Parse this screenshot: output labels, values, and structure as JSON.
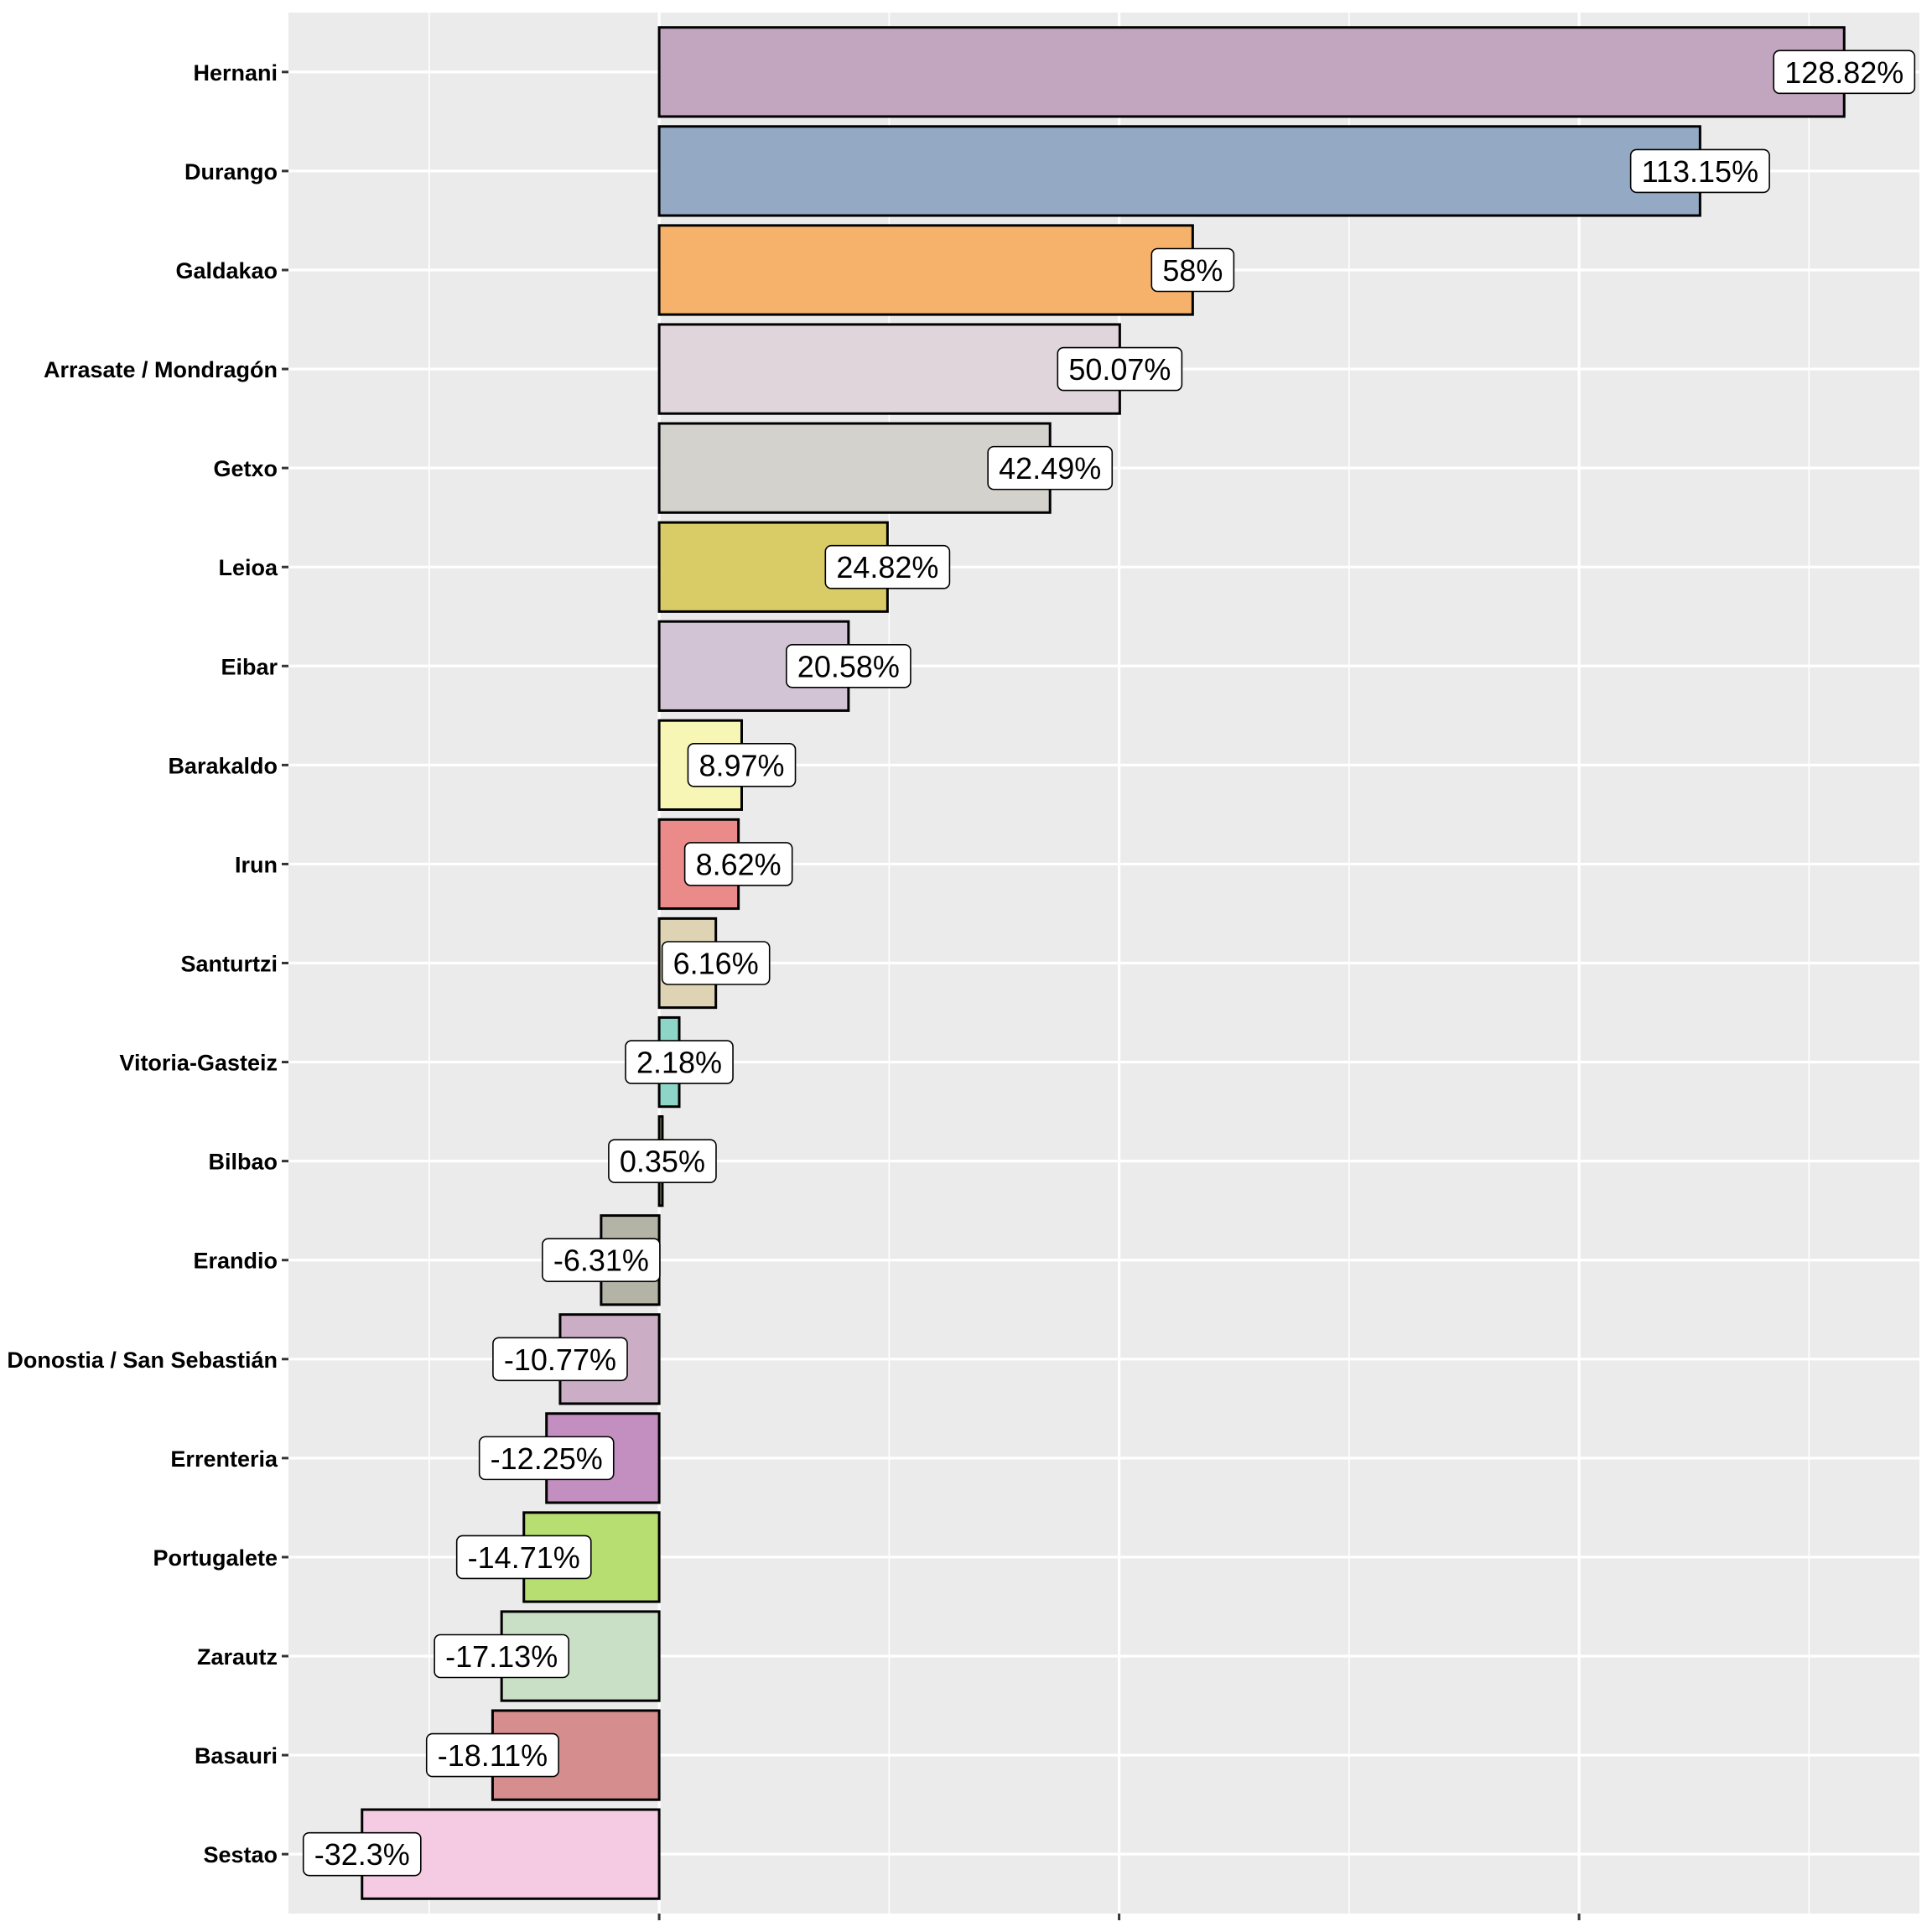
{
  "chart_data": {
    "type": "bar",
    "orientation": "horizontal",
    "title": "",
    "xlabel": "",
    "ylabel": "",
    "xlim": [
      -40.3,
      137.0
    ],
    "x_major_breaks": [
      0,
      50,
      100
    ],
    "x_minor_breaks": [
      -25,
      25,
      75,
      125
    ],
    "x_tick_labels_shown": false,
    "grid": true,
    "legend": "none",
    "categories": [
      "Hernani",
      "Durango",
      "Galdakao",
      "Arrasate / Mondragón",
      "Getxo",
      "Leioa",
      "Eibar",
      "Barakaldo",
      "Irun",
      "Santurtzi",
      "Vitoria-Gasteiz",
      "Bilbao",
      "Erandio",
      "Donostia / San Sebastián",
      "Errenteria",
      "Portugalete",
      "Zarautz",
      "Basauri",
      "Sestao"
    ],
    "values": [
      128.82,
      113.15,
      58,
      50.07,
      42.49,
      24.82,
      20.58,
      8.97,
      8.62,
      6.16,
      2.18,
      0.35,
      -6.31,
      -10.77,
      -12.25,
      -14.71,
      -17.13,
      -18.11,
      -32.3
    ],
    "labels": [
      "128.82%",
      "113.15%",
      "58%",
      "50.07%",
      "42.49%",
      "24.82%",
      "20.58%",
      "8.97%",
      "8.62%",
      "6.16%",
      "2.18%",
      "0.35%",
      "-6.31%",
      "-10.77%",
      "-12.25%",
      "-14.71%",
      "-17.13%",
      "-18.11%",
      "-32.3%"
    ],
    "colors": [
      "#c2a5bf",
      "#93a9c4",
      "#f6b26b",
      "#e1d5dc",
      "#d3d2cd",
      "#d9cb66",
      "#d3c4d5",
      "#f7f6b4",
      "#eb8b89",
      "#ded4b4",
      "#8dd5c7",
      "#b3b87f",
      "#b3b3a6",
      "#cbaec6",
      "#c38fc0",
      "#b6de71",
      "#cae0c6",
      "#d58d8d",
      "#f4cbe3"
    ]
  }
}
